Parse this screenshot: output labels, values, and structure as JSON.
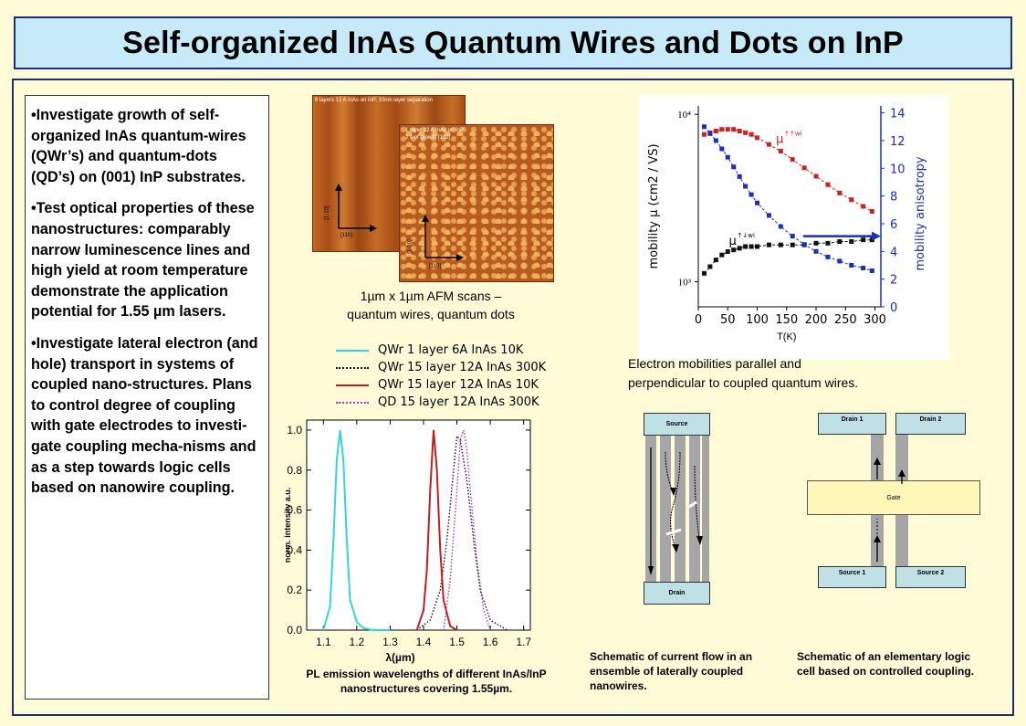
{
  "title": "Self-organized InAs Quantum Wires and Dots on InP",
  "bullets": [
    "•Investigate growth of self-organized InAs quantum-wires (QWr’s) and quantum-dots (QD’s) on (001) InP substrates.",
    "•Test optical properties of these nanostructures: comparably narrow luminescence lines and high yield at room temperature demonstrate the application potential for 1.55 µm lasers.",
    "•Investigate lateral electron (and hole) transport in systems of coupled nano-structures. Plans to control degree of coupling with gate electrodes to investi-gate coupling mecha-nisms and as a step towards logic cells based on nanowire coupling."
  ],
  "afm": {
    "image1_label": "6 layers 12 A InAs on InP, 10nm layer separation",
    "image2_label_line1": "1 layer 12 A InAs on InP",
    "image2_label_line2": "2 s of growth [110]",
    "axis_label_vertical": "[1-10]",
    "axis_label_horizontal": "[110]",
    "caption_line1": "1µm x 1µm AFM scans –",
    "caption_line2": "quantum  wires, quantum dots"
  },
  "mobility_chart": {
    "ylabel_left": "mobility µ (cm2 / VS)",
    "ylabel_right": "mobility anisotropy",
    "xlabel": "T(K)",
    "x_ticks": [
      "0",
      "50",
      "100",
      "150",
      "200",
      "250",
      "300"
    ],
    "y_left_ticks": [
      "10⁴",
      "10³"
    ],
    "y_right_ticks": [
      "14",
      "12",
      "10",
      "8",
      "6",
      "4",
      "2",
      "0"
    ],
    "label_par": "µ",
    "label_par_sup": "↑↑wi",
    "label_perp": "µ",
    "label_perp_sup": "↑↓wi",
    "caption_line1": "Electron mobilities parallel and",
    "caption_line2": "perpendicular to coupled quantum wires.",
    "colors": {
      "parallel": "#cc2222",
      "perpendicular": "#111111",
      "anisotropy": "#1a2fb8"
    }
  },
  "pl_chart": {
    "legend": [
      {
        "label": "QWr 1 layer 6A InAs 10K",
        "color": "#33d4e0",
        "style": "solid"
      },
      {
        "label": "QWr 15 layer 12A InAs 300K",
        "color": "#111111",
        "style": "dotted"
      },
      {
        "label": "QWr 15 layer 12A InAs 10K",
        "color": "#c02020",
        "style": "solid"
      },
      {
        "label": "QD 15 layer 12A InAs 300K",
        "color": "#b030c0",
        "style": "dotted"
      }
    ],
    "ylabel": "norm. intensity a.u.",
    "xlabel": "λ(µm)",
    "x_ticks": [
      "1.1",
      "1.2",
      "1.3",
      "1.4",
      "1.5",
      "1.6",
      "1.7"
    ],
    "y_ticks": [
      "1.0",
      "0.8",
      "0.6",
      "0.4",
      "0.2",
      "0.0"
    ],
    "caption_line1": "PL emission wavelengths of different InAs/InP",
    "caption_line2": "nanostructures covering 1.55µm."
  },
  "chart_data": {
    "type": "line",
    "title": "",
    "xlabel": "λ(µm)",
    "ylabel": "norm. intensity a.u.",
    "xlim": [
      1.05,
      1.72
    ],
    "ylim": [
      0,
      1.05
    ],
    "series": [
      {
        "name": "QWr 1 layer 6A InAs 10K",
        "x": [
          1.1,
          1.12,
          1.13,
          1.14,
          1.15,
          1.16,
          1.17,
          1.18,
          1.2,
          1.22,
          1.25,
          1.3
        ],
        "y": [
          0.0,
          0.12,
          0.45,
          0.85,
          1.0,
          0.85,
          0.45,
          0.15,
          0.04,
          0.01,
          0.0,
          0.0
        ]
      },
      {
        "name": "QWr 15 layer 12A InAs 300K",
        "x": [
          1.38,
          1.42,
          1.45,
          1.47,
          1.49,
          1.5,
          1.51,
          1.53,
          1.55,
          1.57,
          1.6,
          1.65
        ],
        "y": [
          0.0,
          0.05,
          0.2,
          0.45,
          0.8,
          0.97,
          0.95,
          0.75,
          0.45,
          0.2,
          0.05,
          0.0
        ]
      },
      {
        "name": "QWr 15 layer 12A InAs 10K",
        "x": [
          1.38,
          1.4,
          1.41,
          1.42,
          1.43,
          1.44,
          1.45,
          1.46,
          1.48,
          1.5
        ],
        "y": [
          0.0,
          0.1,
          0.3,
          0.7,
          1.0,
          0.8,
          0.4,
          0.15,
          0.02,
          0.0
        ]
      },
      {
        "name": "QD 15 layer 12A InAs 300K",
        "x": [
          1.46,
          1.48,
          1.5,
          1.51,
          1.52,
          1.53,
          1.54,
          1.56,
          1.58,
          1.6
        ],
        "y": [
          0.0,
          0.25,
          0.7,
          0.95,
          1.0,
          0.9,
          0.7,
          0.35,
          0.1,
          0.0
        ]
      }
    ]
  },
  "mobility_data": {
    "T": [
      10,
      20,
      30,
      40,
      50,
      60,
      70,
      80,
      90,
      100,
      120,
      140,
      160,
      180,
      200,
      220,
      240,
      260,
      280,
      295
    ],
    "parallel_log10": [
      3.88,
      3.89,
      3.9,
      3.91,
      3.91,
      3.91,
      3.9,
      3.89,
      3.88,
      3.86,
      3.82,
      3.78,
      3.73,
      3.68,
      3.63,
      3.58,
      3.53,
      3.49,
      3.45,
      3.42
    ],
    "perpendicular_log10": [
      3.05,
      3.09,
      3.13,
      3.16,
      3.18,
      3.19,
      3.2,
      3.21,
      3.21,
      3.21,
      3.22,
      3.22,
      3.22,
      3.22,
      3.23,
      3.23,
      3.24,
      3.24,
      3.25,
      3.25
    ],
    "anisotropy": [
      13.0,
      12.5,
      12.0,
      11.4,
      10.8,
      10.1,
      9.4,
      8.7,
      8.1,
      7.5,
      6.6,
      5.8,
      5.1,
      4.5,
      4.0,
      3.6,
      3.3,
      3.0,
      2.8,
      2.6
    ]
  },
  "schematic1": {
    "source_label": "Source",
    "drain_label": "Drain",
    "caption_line1": "Schematic of current flow in an",
    "caption_line2": "ensemble of laterally coupled",
    "caption_line3": "nanowires."
  },
  "schematic2": {
    "drain1_label": "Drain 1",
    "drain2_label": "Drain 2",
    "gate_label": "Gate",
    "source1_label": "Source 1",
    "source2_label": "Source 2",
    "caption_line1": "Schematic of an elementary logic",
    "caption_line2": "cell based on controlled coupling."
  }
}
